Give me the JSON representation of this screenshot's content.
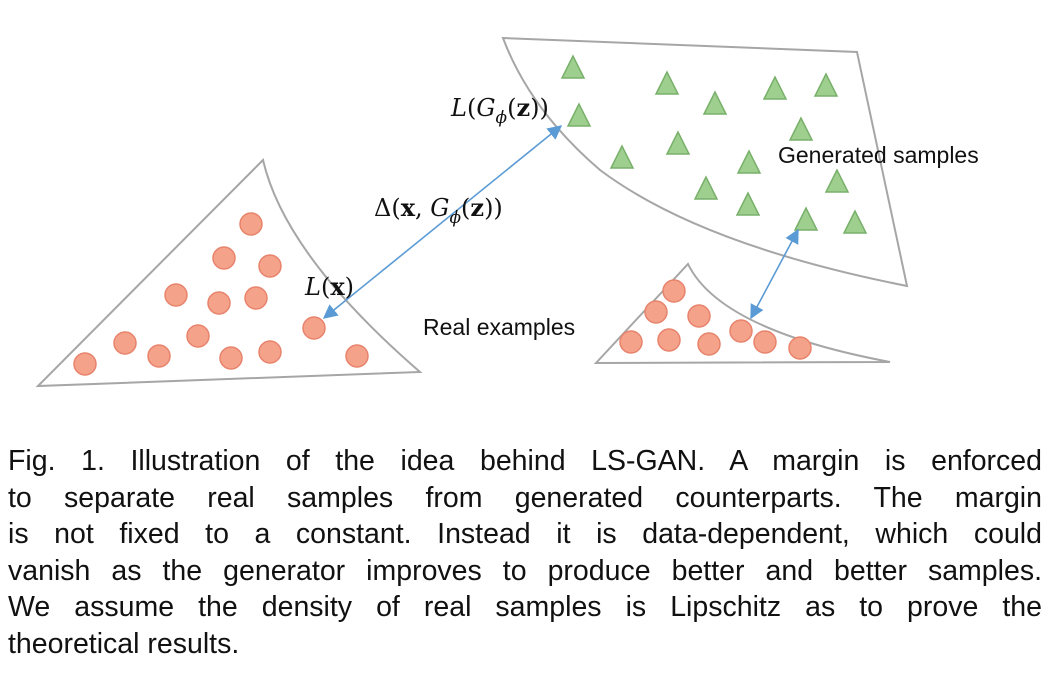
{
  "diagram": {
    "labels": {
      "generated_samples": "Generated samples",
      "real_examples": "Real examples"
    },
    "math": {
      "loss_real": "L(x)",
      "loss_generated": "L(Gϕ(z))",
      "margin": "Δ(x, Gϕ(z))"
    },
    "colors": {
      "real_fill": "#f4a38a",
      "real_stroke": "#e8836c",
      "generated_fill": "#9fcf8f",
      "generated_stroke": "#78b06a",
      "arrow": "#5b9bd5",
      "region_border": "#a6a6a6"
    }
  },
  "caption": {
    "lines": [
      "Fig. 1. Illustration of the idea behind LS-GAN. A margin is enforced",
      "to separate real samples from generated counterparts. The margin",
      "is not fixed to a constant. Instead it is data-dependent, which could",
      "vanish as the generator improves to produce better and better samples.",
      "We assume the density of real samples is Lipschitz as to prove the",
      "theoretical results."
    ]
  }
}
